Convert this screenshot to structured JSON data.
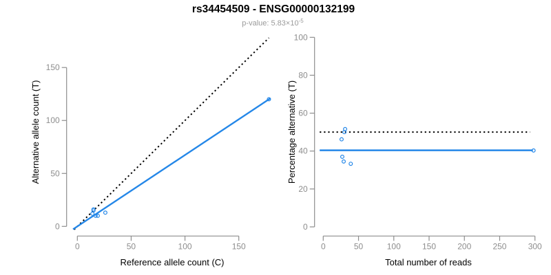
{
  "header": {
    "title": "rs34454509 - ENSG00000132199",
    "p_value_base": "p-value: 5.83×10",
    "p_value_exponent": "-5"
  },
  "colors": {
    "point": "#2487e8",
    "fit_line": "#2487e8",
    "reference_line": "#000000",
    "axis": "#8d8d8d",
    "tick_label": "#8d8d8d",
    "axis_title": "#000000",
    "title": "#000000",
    "subtitle": "#9a9a9a",
    "background": "#ffffff"
  },
  "chart_data": [
    {
      "type": "scatter",
      "panel": "left",
      "xlabel": "Reference allele count (C)",
      "ylabel": "Alternative allele count (T)",
      "xticks": [
        0,
        50,
        100,
        150
      ],
      "yticks": [
        0,
        50,
        100,
        150
      ],
      "xlim": [
        -7,
        184
      ],
      "ylim": [
        -7,
        184
      ],
      "grid": false,
      "legend": false,
      "points": [
        [
          15,
          16
        ],
        [
          15,
          15
        ],
        [
          14,
          12
        ],
        [
          17,
          10
        ],
        [
          19,
          10
        ],
        [
          26,
          13
        ],
        [
          178,
          120
        ]
      ],
      "lines": [
        {
          "name": "identity-line",
          "style": "dotted",
          "color": "#000000",
          "slope": 1,
          "intercept": 0,
          "x_range": [
            -3,
            178
          ]
        },
        {
          "name": "fitted-ratio-line",
          "style": "solid",
          "color": "#2487e8",
          "slope": 0.674,
          "intercept": 0,
          "x_range": [
            -4,
            179.5
          ]
        }
      ]
    },
    {
      "type": "scatter",
      "panel": "right",
      "xlabel": "Total number of reads",
      "ylabel": "Percentage alternative (T)",
      "xticks": [
        0,
        50,
        100,
        150,
        200,
        250,
        300
      ],
      "yticks": [
        0,
        20,
        40,
        60,
        80,
        100
      ],
      "xlim": [
        -12,
        310
      ],
      "ylim": [
        -4,
        104
      ],
      "grid": false,
      "legend": false,
      "points": [
        [
          31,
          51.6
        ],
        [
          30,
          50
        ],
        [
          26,
          46.2
        ],
        [
          27,
          37
        ],
        [
          29,
          34.5
        ],
        [
          39,
          33.3
        ],
        [
          298,
          40.3
        ]
      ],
      "lines": [
        {
          "name": "expected-percentage-line",
          "style": "dotted",
          "color": "#000000",
          "y": 50,
          "x_range": [
            -5,
            293
          ]
        },
        {
          "name": "fitted-percentage-line",
          "style": "solid",
          "color": "#2487e8",
          "y": 40.4,
          "x_range": [
            -5,
            297
          ]
        }
      ]
    }
  ]
}
